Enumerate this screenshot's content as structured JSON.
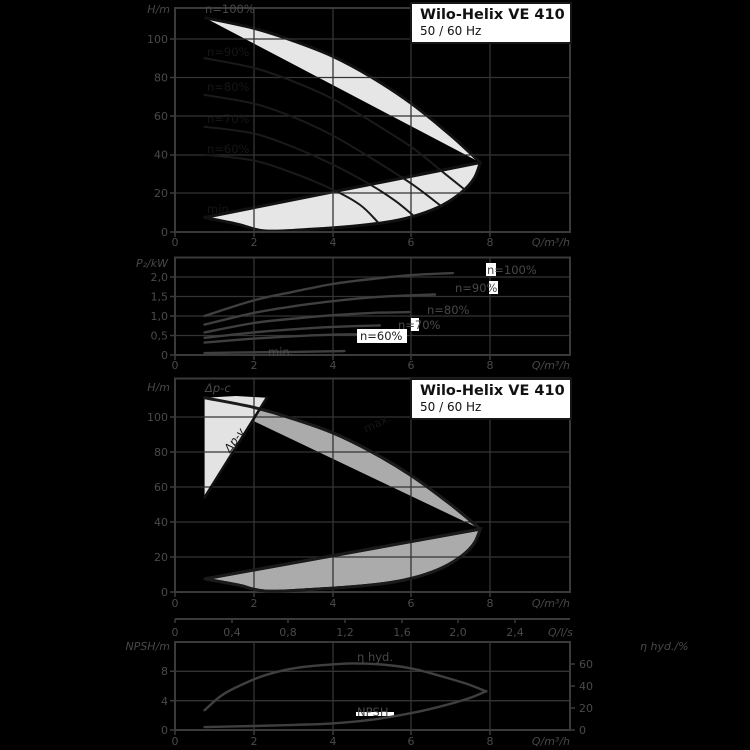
{
  "title_box": {
    "title": "Wilo-Helix VE 410",
    "subtitle": "50 / 60 Hz"
  },
  "charts": {
    "head": {
      "y_axis": "H/m",
      "x_axis": "Q/m³/h",
      "y_ticks": [
        "100",
        "80",
        "60",
        "40",
        "20",
        "0"
      ],
      "x_ticks": [
        "0",
        "2",
        "4",
        "6",
        "8"
      ],
      "labels": {
        "n100": "n=100%",
        "n90": "n=90%",
        "n80": "n=80%",
        "n70": "n=70%",
        "n60": "n=60%",
        "min": "min."
      }
    },
    "power": {
      "y_axis": "P₂/kW",
      "x_axis": "Q/m³/h",
      "y_ticks": [
        "2,0",
        "1,5",
        "1,0",
        "0,5",
        "0"
      ],
      "x_ticks": [
        "0",
        "2",
        "4",
        "6",
        "8"
      ],
      "labels": {
        "n100": "n=100%",
        "n90": "n=90%",
        "n80": "n=80%",
        "n70": "n=70%",
        "n60": "n=60%",
        "min": "min."
      }
    },
    "range": {
      "y_axis": "H/m",
      "x_axis": "Q/m³/h",
      "y_ticks": [
        "100",
        "80",
        "60",
        "40",
        "20",
        "0"
      ],
      "x_ticks": [
        "0",
        "2",
        "4",
        "6",
        "8"
      ],
      "labels": {
        "dpc": "Δp-c",
        "dpv": "Δp-v",
        "max": "max."
      }
    },
    "npsh": {
      "left_axis": "NPSH/m",
      "right_axis": "η hyd./%",
      "top_axis": "Q/l/s",
      "x_axis": "Q/m³/h",
      "left_ticks": [
        "8",
        "4",
        "0"
      ],
      "right_ticks": [
        "60",
        "40",
        "20",
        "0"
      ],
      "top_ticks": [
        "0",
        "0,4",
        "0,8",
        "1,2",
        "1,6",
        "2,0",
        "2,4"
      ],
      "x_ticks": [
        "0",
        "2",
        "4",
        "6",
        "8"
      ],
      "labels": {
        "eta": "η hyd.",
        "npsh": "NPSH"
      }
    }
  },
  "chart_data": [
    {
      "id": "head",
      "type": "area",
      "title": "Wilo-Helix VE 410",
      "subtitle": "50 / 60 Hz",
      "xlabel": "Q/m³/h",
      "ylabel": "H/m",
      "xlim": [
        0,
        10
      ],
      "ylim": [
        0,
        116
      ],
      "render": {
        "x0": 175,
        "xs": 39.4,
        "y0": 232,
        "ys": 1.931
      },
      "series": [
        {
          "name": "n100",
          "label": "n=100%",
          "points": [
            [
              0.75,
              111
            ],
            [
              2,
              105.5
            ],
            [
              3,
              99
            ],
            [
              4,
              91
            ],
            [
              5,
              80
            ],
            [
              6,
              66.5
            ],
            [
              7,
              50
            ],
            [
              7.75,
              36
            ]
          ]
        },
        {
          "name": "n90",
          "label": "n=90%",
          "points": [
            [
              0.75,
              90
            ],
            [
              2,
              85
            ],
            [
              3,
              78
            ],
            [
              4,
              69
            ],
            [
              5,
              57
            ],
            [
              6,
              44
            ],
            [
              6.8,
              31
            ],
            [
              7.35,
              22
            ]
          ]
        },
        {
          "name": "n80",
          "label": "n=80%",
          "points": [
            [
              0.75,
              71
            ],
            [
              2,
              66.5
            ],
            [
              3,
              59.5
            ],
            [
              4,
              50
            ],
            [
              5,
              38
            ],
            [
              6,
              25
            ],
            [
              6.75,
              13.5
            ]
          ]
        },
        {
          "name": "n70",
          "label": "n=70%",
          "points": [
            [
              0.75,
              54.5
            ],
            [
              2,
              51
            ],
            [
              3,
              44
            ],
            [
              4,
              35
            ],
            [
              5,
              24
            ],
            [
              5.6,
              16
            ],
            [
              6.05,
              8.5
            ]
          ]
        },
        {
          "name": "n60",
          "label": "n=60%",
          "points": [
            [
              0.75,
              40
            ],
            [
              2,
              37
            ],
            [
              3,
              30.5
            ],
            [
              4,
              22
            ],
            [
              4.7,
              14
            ],
            [
              5.15,
              5
            ]
          ]
        },
        {
          "name": "min",
          "label": "min.",
          "points": [
            [
              0.75,
              7.5
            ],
            [
              1.6,
              4
            ],
            [
              2.3,
              0.5
            ],
            [
              3.5,
              1.5
            ],
            [
              4.5,
              3
            ],
            [
              5.5,
              5.5
            ],
            [
              6.2,
              9
            ],
            [
              6.8,
              14
            ],
            [
              7.3,
              21
            ],
            [
              7.6,
              28
            ],
            [
              7.75,
              36
            ]
          ]
        }
      ]
    },
    {
      "id": "power",
      "type": "line",
      "xlabel": "Q/m³/h",
      "ylabel": "P₂/kW",
      "xlim": [
        0,
        10
      ],
      "ylim": [
        0,
        2.5
      ],
      "render": {
        "x0": 175,
        "xs": 39.4,
        "y0": 105,
        "ys": 39
      },
      "series": [
        {
          "name": "n100",
          "label": "n=100%",
          "points": [
            [
              0.75,
              1.0
            ],
            [
              2,
              1.4
            ],
            [
              3,
              1.62
            ],
            [
              4,
              1.82
            ],
            [
              5,
              1.95
            ],
            [
              6,
              2.05
            ],
            [
              7.05,
              2.1
            ]
          ]
        },
        {
          "name": "n90",
          "label": "n=90%",
          "points": [
            [
              0.75,
              0.78
            ],
            [
              2,
              1.08
            ],
            [
              3,
              1.25
            ],
            [
              4,
              1.38
            ],
            [
              5,
              1.48
            ],
            [
              6,
              1.53
            ],
            [
              6.6,
              1.55
            ]
          ]
        },
        {
          "name": "n80",
          "label": "n=80%",
          "points": [
            [
              0.75,
              0.58
            ],
            [
              2,
              0.82
            ],
            [
              3,
              0.93
            ],
            [
              4,
              1.02
            ],
            [
              5,
              1.08
            ],
            [
              5.95,
              1.1
            ]
          ]
        },
        {
          "name": "n70",
          "label": "n=70%",
          "points": [
            [
              0.75,
              0.44
            ],
            [
              2,
              0.58
            ],
            [
              3,
              0.66
            ],
            [
              4,
              0.72
            ],
            [
              5.2,
              0.76
            ]
          ]
        },
        {
          "name": "n60",
          "label": "n=60%",
          "points": [
            [
              0.75,
              0.32
            ],
            [
              2,
              0.42
            ],
            [
              3,
              0.48
            ],
            [
              4,
              0.52
            ],
            [
              4.7,
              0.53
            ]
          ]
        },
        {
          "name": "min",
          "label": "min.",
          "points": [
            [
              0.75,
              0.05
            ],
            [
              2,
              0.07
            ],
            [
              3,
              0.08
            ],
            [
              4.3,
              0.1
            ]
          ]
        }
      ]
    },
    {
      "id": "range",
      "type": "area",
      "title": "Wilo-Helix VE 410",
      "subtitle": "50 / 60 Hz",
      "xlabel": "Q/m³/h",
      "ylabel": "H/m",
      "xlim": [
        0,
        10
      ],
      "ylim": [
        0,
        122
      ],
      "render": {
        "x0": 175,
        "xs": 39.4,
        "y0": 217,
        "ys": 1.75
      },
      "series": [
        {
          "name": "max",
          "label": "max.",
          "points": [
            [
              0.75,
              111
            ],
            [
              2,
              105.5
            ],
            [
              3,
              99
            ],
            [
              4,
              91
            ],
            [
              5,
              80
            ],
            [
              6,
              66.5
            ],
            [
              7,
              50
            ],
            [
              7.75,
              36
            ]
          ]
        },
        {
          "name": "min",
          "label": "min.",
          "points": [
            [
              0.75,
              7.5
            ],
            [
              1.6,
              4
            ],
            [
              2.3,
              0.5
            ],
            [
              3.5,
              1.5
            ],
            [
              4.5,
              3
            ],
            [
              5.5,
              5.5
            ],
            [
              6.2,
              9
            ],
            [
              6.8,
              14
            ],
            [
              7.3,
              21
            ],
            [
              7.6,
              28
            ],
            [
              7.75,
              36
            ]
          ]
        },
        {
          "name": "dpv",
          "label": "Δp-v",
          "points": [
            [
              0.75,
              54
            ],
            [
              2.33,
              111
            ]
          ]
        },
        {
          "name": "dpv_zone",
          "label": "Δp-v zone",
          "points": [
            [
              0.75,
              54
            ],
            [
              0.75,
              111
            ],
            [
              1.55,
              112
            ],
            [
              2.33,
              111
            ]
          ]
        }
      ]
    },
    {
      "id": "npsh_eta",
      "type": "line",
      "xlabel": "Q/m³/h",
      "xlabel_top": "Q/l/s",
      "ylabel_left": "NPSH/m",
      "ylabel_right": "η hyd./%",
      "xlim": [
        0,
        10
      ],
      "ylim_left": [
        0,
        12
      ],
      "ylim_right": [
        0,
        80
      ],
      "xlim_top_ls": [
        0,
        2.78
      ],
      "render": {
        "x0": 175,
        "xs": 39.4,
        "y0": 118,
        "ys": 7.333,
        "ys2": 1.1
      },
      "series": [
        {
          "name": "eta",
          "label": "η hyd.",
          "axis": "right",
          "points": [
            [
              0.75,
              18
            ],
            [
              1.25,
              33
            ],
            [
              2,
              46
            ],
            [
              2.5,
              52
            ],
            [
              3,
              56
            ],
            [
              3.75,
              59
            ],
            [
              4.5,
              60.5
            ],
            [
              5.25,
              59.5
            ],
            [
              6,
              56
            ],
            [
              6.75,
              49
            ],
            [
              7.4,
              42
            ],
            [
              7.9,
              35
            ]
          ]
        },
        {
          "name": "npsh",
          "label": "NPSH",
          "axis": "left",
          "points": [
            [
              0.75,
              0.4
            ],
            [
              2,
              0.55
            ],
            [
              3,
              0.7
            ],
            [
              4,
              0.9
            ],
            [
              5,
              1.4
            ],
            [
              6,
              2.3
            ],
            [
              6.8,
              3.3
            ],
            [
              7.5,
              4.4
            ],
            [
              7.9,
              5.3
            ]
          ]
        }
      ]
    }
  ]
}
